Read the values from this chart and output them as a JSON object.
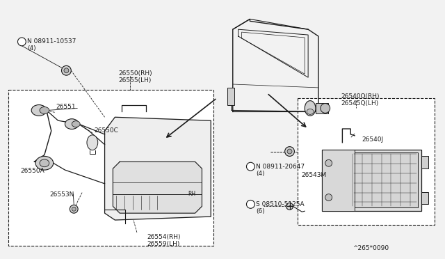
{
  "bg_color": "#f2f2f2",
  "line_color": "#1a1a1a",
  "text_color": "#1a1a1a",
  "labels": {
    "nut_top": "N 08911-10537",
    "nut_top_qty": "(4)",
    "lamp_rh": "26550(RH)",
    "lamp_lh": "26555(LH)",
    "wire": "26551",
    "bulb_c": "26550C",
    "bulb_a": "26550A",
    "gasket": "26553N",
    "lens_rh": "26554(RH)",
    "lens_lh": "26559(LH)",
    "nut_ctr": "N 08911-20647",
    "nut_ctr_qty": "(4)",
    "screw": "S 08510-5125A",
    "screw_qty": "(6)",
    "backup_rh": "26540Q(RH)",
    "backup_lh": "26545Q(LH)",
    "clip": "26540J",
    "housing": "26543M",
    "code": "^265*0090"
  }
}
